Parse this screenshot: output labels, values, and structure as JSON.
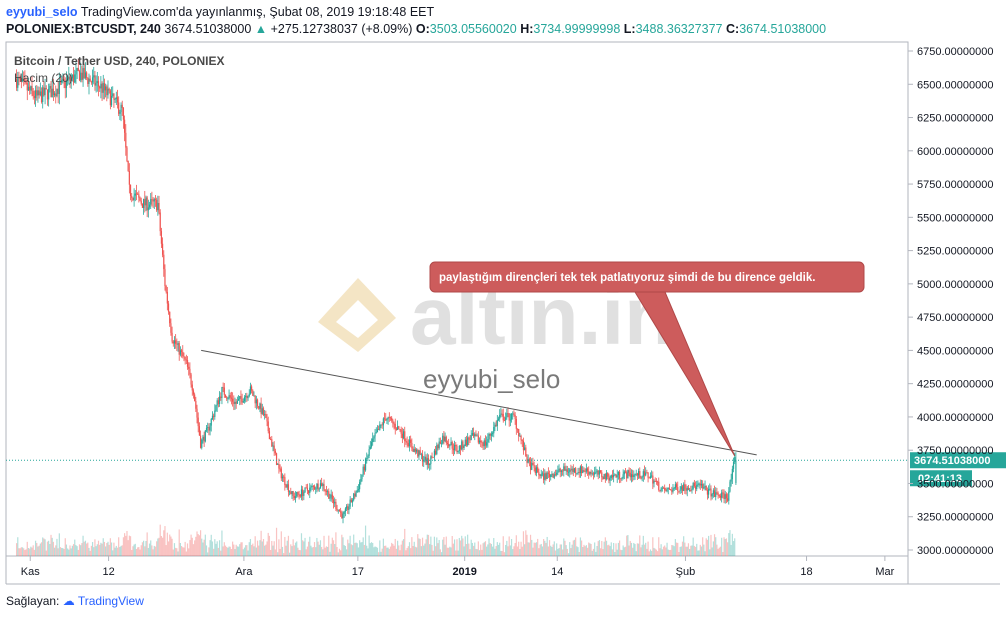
{
  "header": {
    "user": "eyyubi_selo",
    "published": "TradingView.com'da yayınlanmış, Şubat 08, 2019 19:18:48 EET",
    "symbol": "POLONIEX:BTCUSDT, 240",
    "last": "3674.51038000",
    "change_arrow": "▲",
    "change": "+275.12738037 (+8.09%)",
    "o_label": "O:",
    "o": "3503.05560020",
    "h_label": "H:",
    "h": "3734.99999998",
    "l_label": "L:",
    "l": "3488.36327377",
    "c_label": "C:",
    "c": "3674.51038000"
  },
  "legend": {
    "title": "Bitcoin / Tether USD, 240, POLONIEX",
    "indicator": "Hacim (20)"
  },
  "watermark": {
    "logo_text": "altın.in",
    "author": "eyyubi_selo"
  },
  "annotation": "paylaştığım dirençleri tek tek patlatıyoruz şimdi de bu dirence geldik.",
  "price_label": "3674.51038000",
  "countdown": "02:41:13",
  "footer": {
    "label": "Sağlayan:",
    "brand": "TradingView"
  },
  "colors": {
    "up": "#26a69a",
    "down": "#ef5350",
    "annotation_fill": "#cd5c5c",
    "price_line": "#26a69a"
  },
  "chart_data": {
    "type": "candlestick",
    "title": "Bitcoin / Tether USD, 240, POLONIEX",
    "ylim": [
      2980,
      6800
    ],
    "y_ticks": [
      "6750.00000000",
      "6500.00000000",
      "6250.00000000",
      "6000.00000000",
      "5750.00000000",
      "5500.00000000",
      "5250.00000000",
      "5000.00000000",
      "4750.00000000",
      "4500.00000000",
      "4250.00000000",
      "4000.00000000",
      "3750.00000000",
      "3500.00000000",
      "3250.00000000",
      "3000.00000000"
    ],
    "y_tick_values": [
      6750,
      6500,
      6250,
      6000,
      5750,
      5500,
      5250,
      5000,
      4750,
      4500,
      4250,
      4000,
      3750,
      3500,
      3250,
      3000
    ],
    "x_ticks": [
      "Kas",
      "12",
      "Ara",
      "17",
      "2019",
      "14",
      "Şub",
      "18",
      "Mar"
    ],
    "x_tick_dates": [
      "2018-11-01",
      "2018-11-12",
      "2018-12-01",
      "2018-12-17",
      "2019-01-01",
      "2019-01-14",
      "2019-02-01",
      "2019-02-18",
      "2019-03-01"
    ],
    "x_range": [
      "2018-10-30",
      "2019-03-02"
    ],
    "price_path": [
      [
        "2018-10-30",
        6540
      ],
      [
        "2018-11-02",
        6400
      ],
      [
        "2018-11-05",
        6470
      ],
      [
        "2018-11-08",
        6580
      ],
      [
        "2018-11-11",
        6480
      ],
      [
        "2018-11-14",
        6300
      ],
      [
        "2018-11-15",
        5700
      ],
      [
        "2018-11-17",
        5600
      ],
      [
        "2018-11-19",
        5600
      ],
      [
        "2018-11-20",
        5000
      ],
      [
        "2018-11-21",
        4600
      ],
      [
        "2018-11-23",
        4400
      ],
      [
        "2018-11-24",
        4200
      ],
      [
        "2018-11-25",
        3800
      ],
      [
        "2018-11-26",
        3900
      ],
      [
        "2018-11-28",
        4200
      ],
      [
        "2018-11-30",
        4100
      ],
      [
        "2018-12-02",
        4200
      ],
      [
        "2018-12-04",
        4000
      ],
      [
        "2018-12-06",
        3600
      ],
      [
        "2018-12-08",
        3400
      ],
      [
        "2018-12-10",
        3450
      ],
      [
        "2018-12-12",
        3500
      ],
      [
        "2018-12-15",
        3250
      ],
      [
        "2018-12-17",
        3450
      ],
      [
        "2018-12-19",
        3800
      ],
      [
        "2018-12-21",
        4000
      ],
      [
        "2018-12-23",
        3900
      ],
      [
        "2018-12-25",
        3750
      ],
      [
        "2018-12-27",
        3650
      ],
      [
        "2018-12-29",
        3850
      ],
      [
        "2018-12-31",
        3750
      ],
      [
        "2019-01-02",
        3850
      ],
      [
        "2019-01-04",
        3800
      ],
      [
        "2019-01-06",
        4000
      ],
      [
        "2019-01-08",
        4000
      ],
      [
        "2019-01-10",
        3650
      ],
      [
        "2019-01-12",
        3550
      ],
      [
        "2019-01-15",
        3600
      ],
      [
        "2019-01-18",
        3600
      ],
      [
        "2019-01-21",
        3550
      ],
      [
        "2019-01-24",
        3570
      ],
      [
        "2019-01-27",
        3560
      ],
      [
        "2019-01-29",
        3440
      ],
      [
        "2019-01-31",
        3470
      ],
      [
        "2019-02-03",
        3480
      ],
      [
        "2019-02-05",
        3420
      ],
      [
        "2019-02-07",
        3400
      ],
      [
        "2019-02-08",
        3674.51
      ]
    ],
    "trendline": [
      [
        "2018-11-25",
        4500
      ],
      [
        "2019-02-11",
        3715
      ]
    ],
    "last_price": 3674.51,
    "last_bar": {
      "open": 3503.0556002,
      "high": 3734.99999998,
      "low": 3488.36327377,
      "close": 3674.51038
    }
  }
}
